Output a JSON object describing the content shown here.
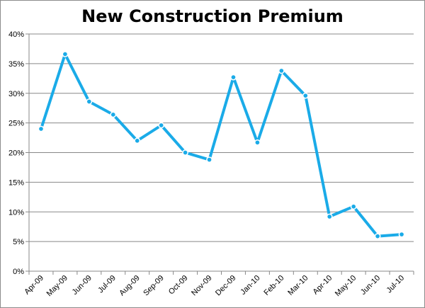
{
  "chart_data": {
    "type": "line",
    "title": "New Construction Premium",
    "xlabel": "",
    "ylabel": "",
    "categories": [
      "Apr-09",
      "May-09",
      "Jun-09",
      "Jul-09",
      "Aug-09",
      "Sep-09",
      "Oct-09",
      "Nov-09",
      "Dec-09",
      "Jan-10",
      "Feb-10",
      "Mar-10",
      "Apr-10",
      "May-10",
      "Jun-10",
      "Jul-10"
    ],
    "series": [
      {
        "values": [
          0.24,
          0.366,
          0.286,
          0.264,
          0.22,
          0.246,
          0.2,
          0.188,
          0.327,
          0.217,
          0.338,
          0.296,
          0.092,
          0.109,
          0.059,
          0.062
        ]
      }
    ],
    "ylim": [
      0,
      0.4
    ],
    "yticks": [
      "0%",
      "5%",
      "10%",
      "15%",
      "20%",
      "25%",
      "30%",
      "35%",
      "40%"
    ],
    "grid": true,
    "legend": "none",
    "colors": {
      "line": "#1aabe8",
      "grid": "#888888",
      "axis": "#888888"
    }
  }
}
